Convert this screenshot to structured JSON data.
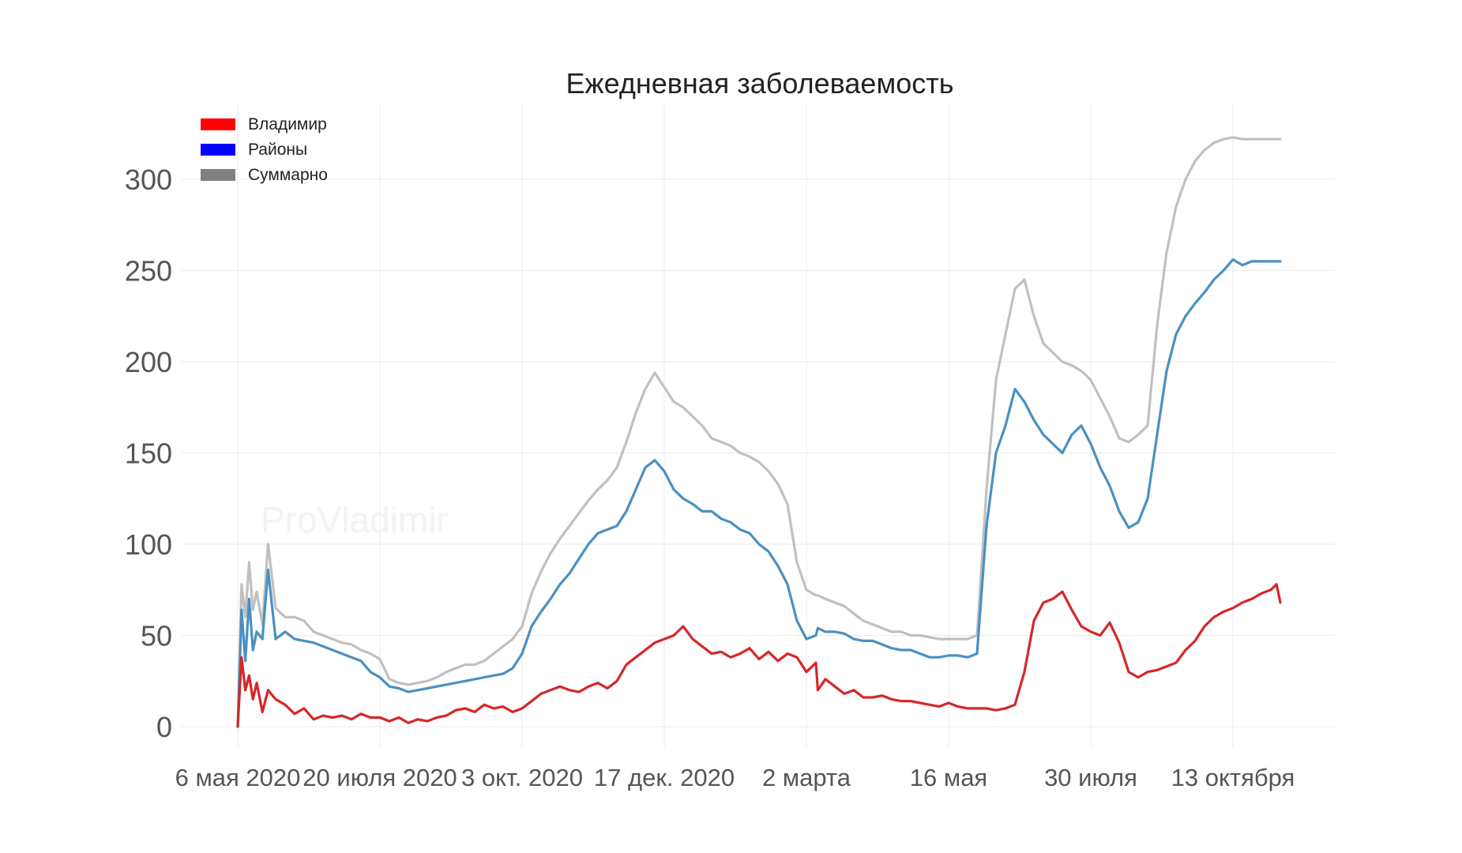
{
  "chart_data": {
    "type": "line",
    "title": "Ежедневная заболеваемость",
    "watermark": "ProVladimir",
    "xlabel": "",
    "ylabel": "",
    "ylim": [
      0,
      330
    ],
    "yticks": [
      0,
      50,
      100,
      150,
      200,
      250,
      300
    ],
    "x_range_days": [
      -5,
      550
    ],
    "xticks": [
      {
        "day": 0,
        "label": "6 мая 2020"
      },
      {
        "day": 75,
        "label": "20 июля 2020"
      },
      {
        "day": 150,
        "label": "3 окт. 2020"
      },
      {
        "day": 225,
        "label": "17 дек. 2020"
      },
      {
        "day": 300,
        "label": "2 марта"
      },
      {
        "day": 375,
        "label": "16 мая"
      },
      {
        "day": 450,
        "label": "30 июля"
      },
      {
        "day": 525,
        "label": "13 октября"
      }
    ],
    "grid": true,
    "legend_position": "top-left",
    "series": [
      {
        "name": "Владимир",
        "legend_color": "#ff0000",
        "color": "#d62728",
        "x": [
          0,
          2,
          4,
          6,
          8,
          10,
          13,
          16,
          20,
          25,
          30,
          35,
          40,
          45,
          50,
          55,
          60,
          65,
          70,
          75,
          80,
          85,
          90,
          95,
          100,
          105,
          110,
          115,
          120,
          125,
          130,
          135,
          140,
          145,
          150,
          155,
          160,
          165,
          170,
          175,
          180,
          185,
          190,
          195,
          200,
          205,
          210,
          215,
          220,
          225,
          230,
          235,
          240,
          245,
          250,
          255,
          260,
          265,
          270,
          275,
          280,
          285,
          290,
          295,
          300,
          305,
          306,
          310,
          315,
          320,
          325,
          330,
          335,
          340,
          345,
          350,
          355,
          360,
          365,
          370,
          375,
          380,
          385,
          390,
          395,
          400,
          405,
          410,
          415,
          420,
          425,
          430,
          435,
          440,
          445,
          450,
          455,
          460,
          465,
          470,
          475,
          480,
          485,
          490,
          495,
          500,
          505,
          510,
          515,
          520,
          525,
          530,
          535,
          540,
          545,
          548,
          550
        ],
        "y": [
          0,
          38,
          20,
          28,
          15,
          24,
          8,
          20,
          15,
          12,
          7,
          10,
          4,
          6,
          5,
          6,
          4,
          7,
          5,
          5,
          3,
          5,
          2,
          4,
          3,
          5,
          6,
          9,
          10,
          8,
          12,
          10,
          11,
          8,
          10,
          14,
          18,
          20,
          22,
          20,
          19,
          22,
          24,
          21,
          25,
          34,
          38,
          42,
          46,
          48,
          50,
          55,
          48,
          44,
          40,
          41,
          38,
          40,
          43,
          37,
          41,
          36,
          40,
          38,
          30,
          35,
          20,
          26,
          22,
          18,
          20,
          16,
          16,
          17,
          15,
          14,
          14,
          13,
          12,
          11,
          13,
          11,
          10,
          10,
          10,
          9,
          10,
          12,
          30,
          58,
          68,
          70,
          74,
          64,
          55,
          52,
          50,
          57,
          46,
          30,
          27,
          30,
          31,
          33,
          35,
          42,
          47,
          55,
          60,
          63,
          65,
          68,
          70,
          73,
          75,
          78,
          68
        ]
      },
      {
        "name": "Районы",
        "legend_color": "#0000ff",
        "color": "#4a90c2",
        "x": [
          0,
          2,
          4,
          6,
          8,
          10,
          13,
          16,
          20,
          25,
          30,
          35,
          40,
          45,
          50,
          55,
          60,
          65,
          70,
          75,
          80,
          85,
          90,
          95,
          100,
          105,
          110,
          115,
          120,
          125,
          130,
          135,
          140,
          145,
          150,
          155,
          160,
          165,
          170,
          175,
          180,
          185,
          190,
          195,
          200,
          205,
          210,
          215,
          220,
          225,
          230,
          235,
          240,
          245,
          250,
          255,
          260,
          265,
          270,
          275,
          280,
          285,
          290,
          295,
          300,
          305,
          306,
          310,
          315,
          320,
          325,
          330,
          335,
          340,
          345,
          350,
          355,
          360,
          365,
          370,
          375,
          380,
          385,
          390,
          395,
          400,
          405,
          410,
          415,
          420,
          425,
          430,
          435,
          440,
          445,
          450,
          455,
          460,
          465,
          470,
          475,
          480,
          485,
          490,
          495,
          500,
          505,
          510,
          515,
          520,
          525,
          530,
          535,
          540,
          545,
          548,
          550
        ],
        "y": [
          0,
          64,
          36,
          70,
          42,
          52,
          48,
          86,
          48,
          52,
          48,
          47,
          46,
          44,
          42,
          40,
          38,
          36,
          30,
          27,
          22,
          21,
          19,
          20,
          21,
          22,
          23,
          24,
          25,
          26,
          27,
          28,
          29,
          32,
          40,
          55,
          63,
          70,
          78,
          84,
          92,
          100,
          106,
          108,
          110,
          118,
          130,
          142,
          146,
          140,
          130,
          125,
          122,
          118,
          118,
          114,
          112,
          108,
          106,
          100,
          96,
          88,
          78,
          58,
          48,
          50,
          54,
          52,
          52,
          51,
          48,
          47,
          47,
          45,
          43,
          42,
          42,
          40,
          38,
          38,
          39,
          39,
          38,
          40,
          110,
          150,
          165,
          185,
          178,
          168,
          160,
          155,
          150,
          160,
          165,
          155,
          142,
          132,
          118,
          109,
          112,
          125,
          160,
          195,
          215,
          225,
          232,
          238,
          245,
          250,
          256,
          253,
          255,
          255,
          255,
          255,
          255
        ]
      },
      {
        "name": "Суммарно",
        "legend_color": "#808080",
        "color": "#c0c0c0",
        "x": [
          0,
          2,
          4,
          6,
          8,
          10,
          13,
          16,
          20,
          25,
          30,
          35,
          40,
          45,
          50,
          55,
          60,
          65,
          70,
          75,
          80,
          85,
          90,
          95,
          100,
          105,
          110,
          115,
          120,
          125,
          130,
          135,
          140,
          145,
          150,
          155,
          160,
          165,
          170,
          175,
          180,
          185,
          190,
          195,
          200,
          205,
          210,
          215,
          220,
          225,
          230,
          235,
          240,
          245,
          250,
          255,
          260,
          265,
          270,
          275,
          280,
          285,
          290,
          295,
          300,
          305,
          306,
          310,
          315,
          320,
          325,
          330,
          335,
          340,
          345,
          350,
          355,
          360,
          365,
          370,
          375,
          380,
          385,
          390,
          395,
          400,
          405,
          410,
          415,
          420,
          425,
          430,
          435,
          440,
          445,
          450,
          455,
          460,
          465,
          470,
          475,
          480,
          485,
          490,
          495,
          500,
          505,
          510,
          515,
          520,
          525,
          530,
          535,
          540,
          545,
          548,
          550
        ],
        "y": [
          0,
          78,
          60,
          90,
          64,
          74,
          56,
          100,
          65,
          60,
          60,
          58,
          52,
          50,
          48,
          46,
          45,
          42,
          40,
          37,
          26,
          24,
          23,
          24,
          25,
          27,
          30,
          32,
          34,
          34,
          36,
          40,
          44,
          48,
          55,
          73,
          85,
          95,
          103,
          110,
          117,
          124,
          130,
          135,
          142,
          156,
          172,
          185,
          194,
          186,
          178,
          175,
          170,
          165,
          158,
          156,
          154,
          150,
          148,
          145,
          140,
          133,
          122,
          90,
          75,
          72,
          72,
          70,
          68,
          66,
          62,
          58,
          56,
          54,
          52,
          52,
          50,
          50,
          49,
          48,
          48,
          48,
          48,
          50,
          130,
          190,
          215,
          240,
          245,
          225,
          210,
          205,
          200,
          198,
          195,
          190,
          180,
          170,
          158,
          156,
          160,
          165,
          220,
          260,
          285,
          300,
          310,
          316,
          320,
          322,
          323,
          322,
          322,
          322,
          322,
          322,
          322
        ]
      }
    ]
  }
}
